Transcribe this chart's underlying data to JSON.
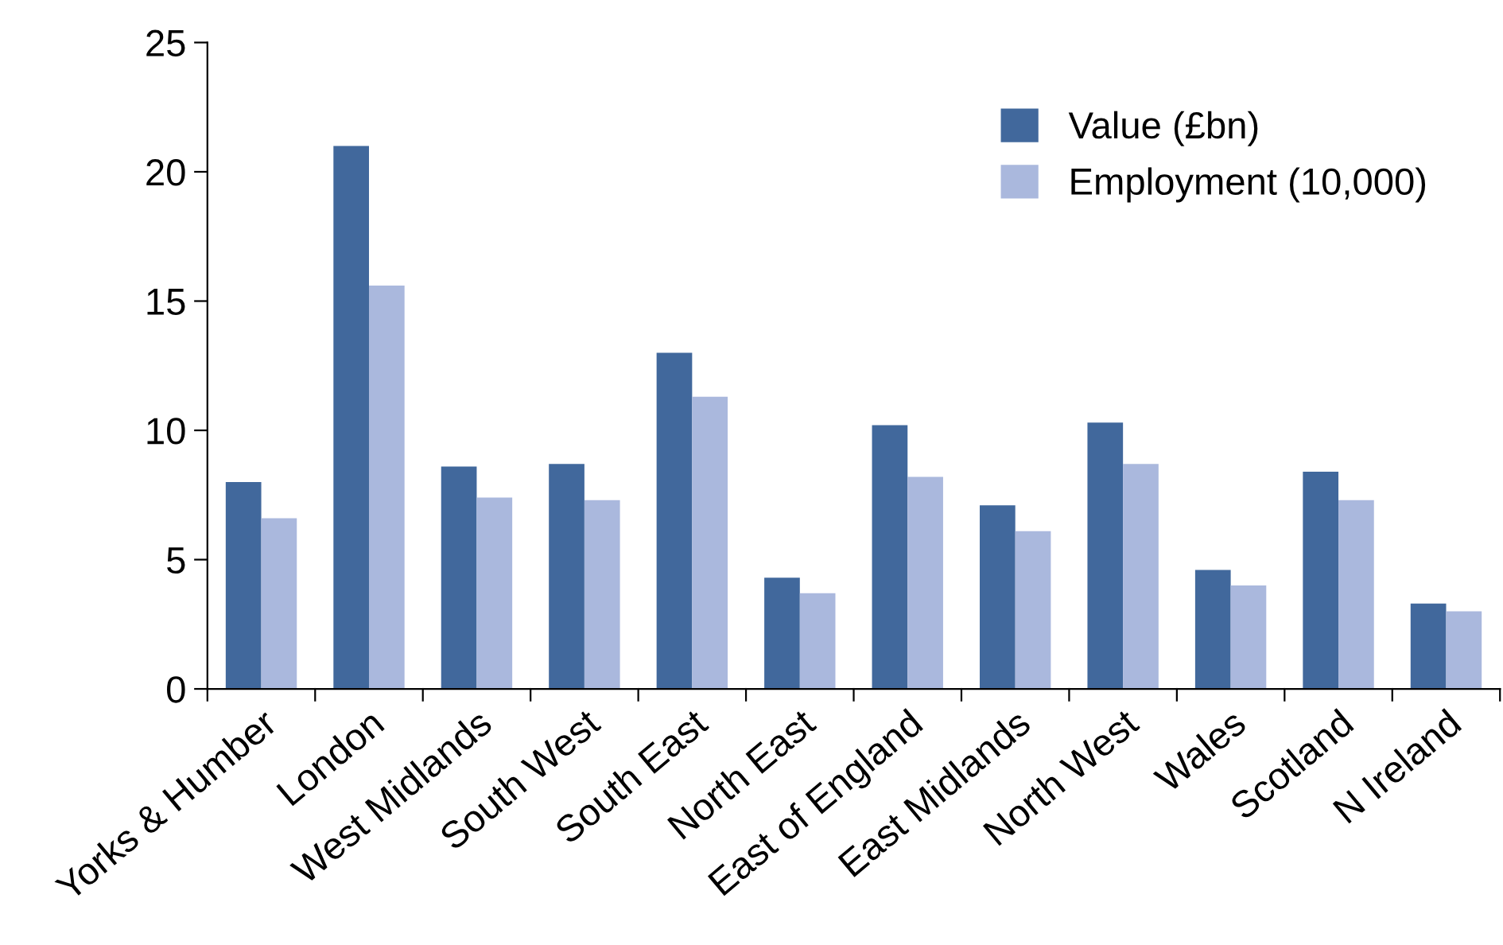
{
  "chart_data": {
    "type": "bar",
    "categories": [
      "Yorks & Humber",
      "London",
      "West Midlands",
      "South West",
      "South East",
      "North East",
      "East of England",
      "East Midlands",
      "North West",
      "Wales",
      "Scotland",
      "N Ireland"
    ],
    "series": [
      {
        "name": "Value (£bn)",
        "color": "#41689c",
        "values": [
          8.0,
          21.0,
          8.6,
          8.7,
          13.0,
          4.3,
          10.2,
          7.1,
          10.3,
          4.6,
          8.4,
          3.3
        ]
      },
      {
        "name": "Employment (10,000)",
        "color": "#aab8dd",
        "values": [
          6.6,
          15.6,
          7.4,
          7.3,
          11.3,
          3.7,
          8.2,
          6.1,
          8.7,
          4.0,
          7.3,
          3.0
        ]
      }
    ],
    "ylim": [
      0,
      25
    ],
    "yticks": [
      0,
      5,
      10,
      15,
      20,
      25
    ],
    "grid": false,
    "legend": "top right"
  }
}
